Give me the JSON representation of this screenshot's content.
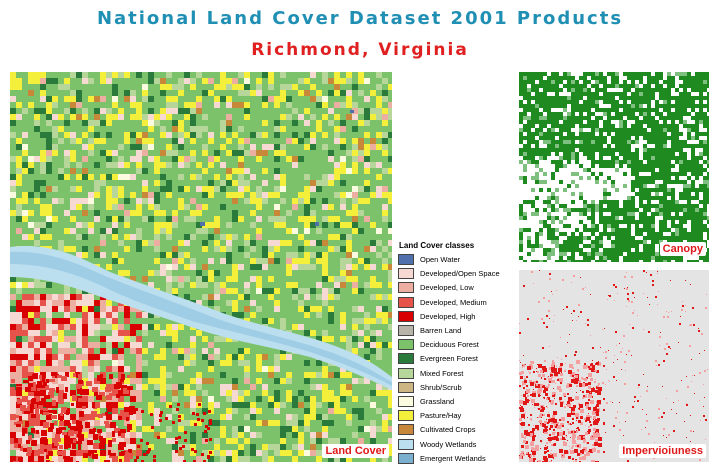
{
  "title": "National Land Cover Dataset 2001 Products",
  "subtitle": "Richmond, Virginia",
  "maps": {
    "land_cover_label": "Land Cover",
    "canopy_label": "Canopy",
    "imperviousness_label": "Impervioiuness"
  },
  "legend": {
    "title": "Land Cover classes",
    "items": [
      {
        "label": "Open Water",
        "color": "#4f6fad"
      },
      {
        "label": "Developed/Open Space",
        "color": "#f7d9d3"
      },
      {
        "label": "Developed, Low",
        "color": "#ebaea0"
      },
      {
        "label": "Developed, Medium",
        "color": "#e5534a"
      },
      {
        "label": "Developed, High",
        "color": "#d80000"
      },
      {
        "label": "Barren Land",
        "color": "#b8b4aa"
      },
      {
        "label": "Deciduous Forest",
        "color": "#7cc26a"
      },
      {
        "label": "Evergreen Forest",
        "color": "#2a7a3c"
      },
      {
        "label": "Mixed Forest",
        "color": "#b7d69a"
      },
      {
        "label": "Shrub/Scrub",
        "color": "#cdb684"
      },
      {
        "label": "Grassland",
        "color": "#fbfbe0"
      },
      {
        "label": "Pasture/Hay",
        "color": "#f4ef3a"
      },
      {
        "label": "Cultivated Crops",
        "color": "#c8883a"
      },
      {
        "label": "Woody Wetlands",
        "color": "#bcdff0"
      },
      {
        "label": "Emergent Wetlands",
        "color": "#7aafd0"
      }
    ]
  }
}
